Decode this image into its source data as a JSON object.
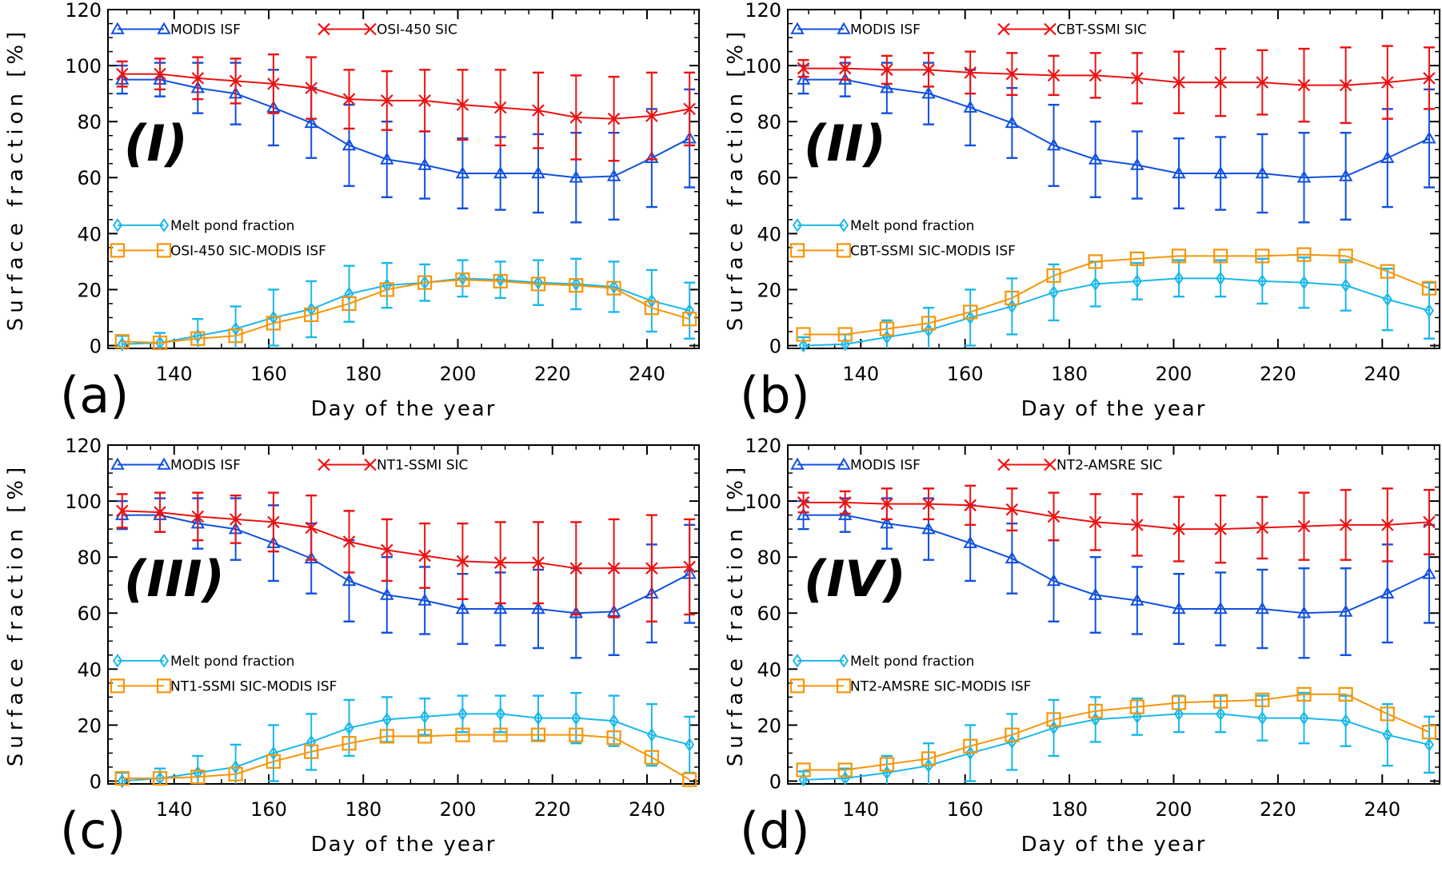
{
  "chart_data": [
    {
      "type": "line",
      "panel_letter": "(a)",
      "panel_roman": "(I)",
      "xlabel": "Day of the year",
      "ylabel": "Surface fraction [%]",
      "xlim": [
        126,
        251
      ],
      "ylim": [
        -1,
        120
      ],
      "xticks": [
        140,
        160,
        180,
        200,
        220,
        240
      ],
      "yticks": [
        0,
        20,
        40,
        60,
        80,
        100,
        120
      ],
      "x": [
        129,
        137,
        145,
        153,
        161,
        169,
        177,
        185,
        193,
        201,
        209,
        217,
        225,
        233,
        241,
        249
      ],
      "series": [
        {
          "name": "MODIS ISF",
          "color": "#1050e0",
          "marker": "triangle",
          "values": [
            95,
            95,
            92,
            90,
            85,
            79.5,
            71.5,
            66.5,
            64.5,
            61.5,
            61.5,
            61.5,
            60,
            60.5,
            67,
            74
          ],
          "err": [
            5,
            6,
            9,
            11,
            13.5,
            12.5,
            14.5,
            13.5,
            12,
            12.5,
            13,
            14,
            16,
            15.5,
            17.5,
            17.5
          ]
        },
        {
          "name": "OSI-450 SIC",
          "color": "#ee1111",
          "marker": "x",
          "values": [
            97,
            97,
            95.5,
            94.5,
            93.5,
            92,
            88,
            87.5,
            87.5,
            86,
            85,
            84,
            81.5,
            81,
            82,
            84.5
          ],
          "err": [
            4.5,
            5.5,
            7.5,
            8,
            10.5,
            11,
            10.5,
            10.5,
            11,
            12.5,
            13.5,
            13.5,
            15,
            15,
            15.5,
            13
          ]
        },
        {
          "name": "Melt pond fraction",
          "color": "#1ab8ea",
          "marker": "diamond",
          "values": [
            0.5,
            1,
            3.5,
            6,
            10,
            13,
            18.5,
            21.5,
            22.5,
            24,
            23.5,
            22.5,
            22,
            21,
            16,
            12.5
          ],
          "err": [
            3,
            3.5,
            6,
            8,
            10,
            10,
            10,
            8,
            6.5,
            6.5,
            6.5,
            8,
            9,
            9,
            11,
            10
          ]
        },
        {
          "name": "OSI-450 SIC-MODIS ISF",
          "color": "#f5960a",
          "marker": "square",
          "values": [
            1.5,
            1,
            2.5,
            3.5,
            8,
            11,
            15,
            20,
            22.5,
            23.5,
            23,
            22,
            21.5,
            20.5,
            13.5,
            9.5
          ],
          "err": null
        }
      ],
      "legend": [
        "MODIS ISF",
        "OSI-450 SIC",
        "Melt pond fraction",
        "OSI-450 SIC-MODIS ISF"
      ]
    },
    {
      "type": "line",
      "panel_letter": "(b)",
      "panel_roman": "(II)",
      "xlabel": "Day of the year",
      "ylabel": "Surface fraction [%]",
      "xlim": [
        126,
        251
      ],
      "ylim": [
        -1,
        120
      ],
      "xticks": [
        140,
        160,
        180,
        200,
        220,
        240
      ],
      "yticks": [
        0,
        20,
        40,
        60,
        80,
        100,
        120
      ],
      "x": [
        129,
        137,
        145,
        153,
        161,
        169,
        177,
        185,
        193,
        201,
        209,
        217,
        225,
        233,
        241,
        249
      ],
      "series": [
        {
          "name": "MODIS ISF",
          "color": "#1050e0",
          "marker": "triangle",
          "values": [
            95,
            95,
            92,
            90,
            85,
            79.5,
            71.5,
            66.5,
            64.5,
            61.5,
            61.5,
            61.5,
            60,
            60.5,
            67,
            74
          ],
          "err": [
            5,
            6,
            9,
            11,
            13.5,
            12.5,
            14.5,
            13.5,
            12,
            12.5,
            13,
            14,
            16,
            15.5,
            17.5,
            17.5
          ]
        },
        {
          "name": "CBT-SSMI SIC",
          "color": "#ee1111",
          "marker": "x",
          "values": [
            99,
            99,
            98.5,
            98.5,
            97.5,
            97,
            96.5,
            96.5,
            95.5,
            94,
            94,
            94,
            93,
            93,
            94,
            95.5
          ],
          "err": [
            3,
            4,
            5,
            6,
            7.5,
            7.5,
            7,
            8,
            9,
            11,
            12,
            11.5,
            13,
            13.5,
            13,
            11
          ]
        },
        {
          "name": "Melt pond fraction",
          "color": "#1ab8ea",
          "marker": "diamond",
          "values": [
            0,
            0.5,
            3,
            5.5,
            10,
            14,
            19,
            22,
            23,
            24,
            24,
            23,
            22.5,
            21.5,
            16.5,
            12.5
          ],
          "err": [
            3,
            3.5,
            6,
            8,
            10,
            10,
            10,
            8,
            6.5,
            6.5,
            6.5,
            8,
            9,
            9,
            11,
            10
          ]
        },
        {
          "name": "CBT-SSMI SIC-MODIS ISF",
          "color": "#f5960a",
          "marker": "square",
          "values": [
            4,
            4,
            6,
            8,
            12,
            17,
            25,
            30,
            31,
            32,
            32,
            32,
            32.5,
            32,
            26.5,
            20.5
          ],
          "err": null
        }
      ],
      "legend": [
        "MODIS ISF",
        "CBT-SSMI SIC",
        "Melt pond fraction",
        "CBT-SSMI SIC-MODIS ISF"
      ]
    },
    {
      "type": "line",
      "panel_letter": "(c)",
      "panel_roman": "(III)",
      "xlabel": "Day of the year",
      "ylabel": "Surface fraction [%]",
      "xlim": [
        126,
        251
      ],
      "ylim": [
        -1,
        120
      ],
      "xticks": [
        140,
        160,
        180,
        200,
        220,
        240
      ],
      "yticks": [
        0,
        20,
        40,
        60,
        80,
        100,
        120
      ],
      "x": [
        129,
        137,
        145,
        153,
        161,
        169,
        177,
        185,
        193,
        201,
        209,
        217,
        225,
        233,
        241,
        249
      ],
      "series": [
        {
          "name": "MODIS ISF",
          "color": "#1050e0",
          "marker": "triangle",
          "values": [
            95,
            95,
            92,
            90,
            85,
            79.5,
            71.5,
            66.5,
            64.5,
            61.5,
            61.5,
            61.5,
            60,
            60.5,
            67,
            74
          ],
          "err": [
            5,
            6,
            9,
            11,
            13.5,
            12.5,
            14.5,
            13.5,
            12,
            12.5,
            13,
            14,
            16,
            15.5,
            17.5,
            17.5
          ]
        },
        {
          "name": "NT1-SSMI SIC",
          "color": "#ee1111",
          "marker": "x",
          "values": [
            96.5,
            96,
            94.5,
            93.5,
            92.5,
            90.5,
            85.5,
            82.5,
            80.5,
            78.5,
            78,
            78,
            76,
            76,
            76,
            76.5
          ],
          "err": [
            6,
            7,
            8.5,
            8.5,
            10.5,
            11.5,
            11,
            11,
            11.5,
            13.5,
            14.5,
            14.5,
            16.5,
            17.5,
            19,
            17
          ]
        },
        {
          "name": "Melt pond fraction",
          "color": "#1ab8ea",
          "marker": "diamond",
          "values": [
            0,
            1,
            3,
            5,
            10,
            14,
            19,
            22,
            23,
            24,
            24,
            22.5,
            22.5,
            21.5,
            16.5,
            13
          ],
          "err": [
            3,
            3.5,
            6,
            8,
            10,
            10,
            10,
            8,
            6.5,
            6.5,
            6.5,
            8,
            9,
            9,
            11,
            10
          ]
        },
        {
          "name": "NT1-SSMI SIC-MODIS ISF",
          "color": "#f5960a",
          "marker": "square",
          "values": [
            1,
            1,
            1.5,
            2.5,
            7,
            10.5,
            13.5,
            16,
            16,
            16.5,
            16.5,
            16.5,
            16.5,
            15.5,
            8.5,
            0.5
          ],
          "err": null
        }
      ],
      "legend": [
        "MODIS ISF",
        "NT1-SSMI SIC",
        "Melt pond fraction",
        "NT1-SSMI SIC-MODIS ISF"
      ]
    },
    {
      "type": "line",
      "panel_letter": "(d)",
      "panel_roman": "(IV)",
      "xlabel": "Day of the year",
      "ylabel": "Surface fraction [%]",
      "xlim": [
        126,
        251
      ],
      "ylim": [
        -1,
        120
      ],
      "xticks": [
        140,
        160,
        180,
        200,
        220,
        240
      ],
      "yticks": [
        0,
        20,
        40,
        60,
        80,
        100,
        120
      ],
      "x": [
        129,
        137,
        145,
        153,
        161,
        169,
        177,
        185,
        193,
        201,
        209,
        217,
        225,
        233,
        241,
        249
      ],
      "series": [
        {
          "name": "MODIS ISF",
          "color": "#1050e0",
          "marker": "triangle",
          "values": [
            95,
            95,
            92,
            90,
            85,
            79.5,
            71.5,
            66.5,
            64.5,
            61.5,
            61.5,
            61.5,
            60,
            60.5,
            67,
            74
          ],
          "err": [
            5,
            6,
            9,
            11,
            13.5,
            12.5,
            14.5,
            13.5,
            12,
            12.5,
            13,
            14,
            16,
            15.5,
            17.5,
            17.5
          ]
        },
        {
          "name": "NT2-AMSRE SIC",
          "color": "#ee1111",
          "marker": "x",
          "values": [
            99.5,
            99.5,
            99,
            99,
            98.5,
            97,
            94.5,
            92.5,
            91.5,
            90,
            90,
            90.5,
            91,
            91.5,
            91.5,
            92.5
          ],
          "err": [
            3.5,
            4,
            5.5,
            5.5,
            7,
            7.5,
            8.5,
            10,
            11,
            11.5,
            12,
            11,
            12,
            12.5,
            13,
            11.5
          ]
        },
        {
          "name": "Melt pond fraction",
          "color": "#1ab8ea",
          "marker": "diamond",
          "values": [
            0.5,
            1,
            3,
            5.5,
            10,
            14,
            19,
            22,
            23,
            24,
            24,
            22.5,
            22.5,
            21.5,
            16.5,
            13
          ],
          "err": [
            3,
            3.5,
            6,
            8,
            10,
            10,
            10,
            8,
            6.5,
            6.5,
            6.5,
            8,
            9,
            9,
            11,
            10
          ]
        },
        {
          "name": "NT2-AMSRE SIC-MODIS ISF",
          "color": "#f5960a",
          "marker": "square",
          "values": [
            4,
            4,
            6,
            8,
            12.5,
            16.5,
            22,
            25,
            26.5,
            28,
            28.5,
            29,
            31,
            31,
            24,
            17.5
          ],
          "err": null
        }
      ],
      "legend": [
        "MODIS ISF",
        "NT2-AMSRE SIC",
        "Melt pond fraction",
        "NT2-AMSRE SIC-MODIS ISF"
      ]
    }
  ]
}
